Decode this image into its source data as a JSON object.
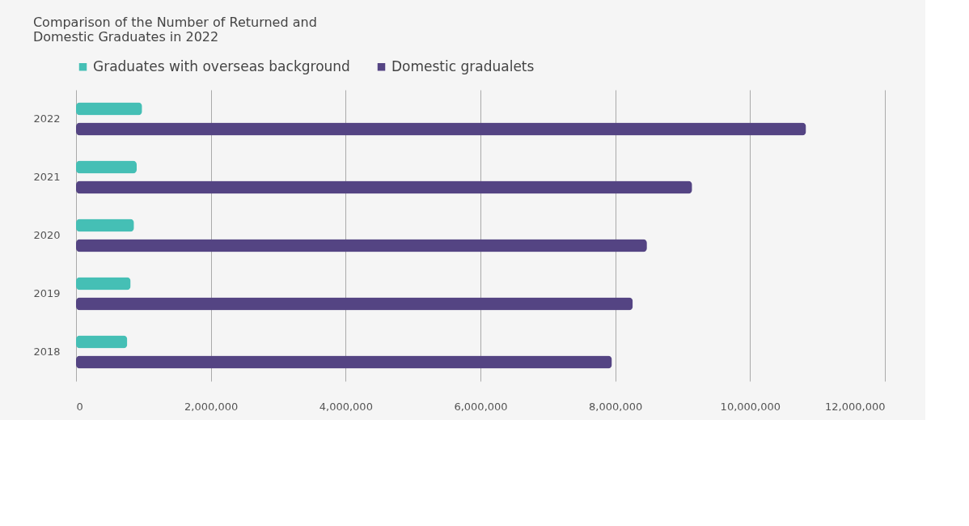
{
  "chart_data": {
    "type": "bar",
    "orientation": "horizontal",
    "title": "Comparison of the Number of Returned and Domestic Graduates in 2022",
    "categories": [
      "2022",
      "2021",
      "2020",
      "2019",
      "2018"
    ],
    "series": [
      {
        "name": "Graduates with overseas background",
        "color": "#45bfb5",
        "values": [
          980000,
          900000,
          860000,
          810000,
          760000
        ]
      },
      {
        "name": "Domestic gradualets",
        "color": "#544483",
        "values": [
          10830000,
          9140000,
          8470000,
          8260000,
          7950000
        ]
      }
    ],
    "xlim": [
      0,
      12000000
    ],
    "xticks": [
      0,
      {
        "value": 2000000,
        "label": "2,000,000"
      },
      {
        "value": 4000000,
        "label": "4,000,000"
      },
      {
        "value": 6000000,
        "label": "6,000,000"
      },
      {
        "value": 8000000,
        "label": "8,000,000"
      },
      {
        "value": 10000000,
        "label": "10,000,000"
      },
      {
        "value": 12000000,
        "label": "12,000,000"
      }
    ],
    "grid": "x",
    "legend": "top"
  }
}
